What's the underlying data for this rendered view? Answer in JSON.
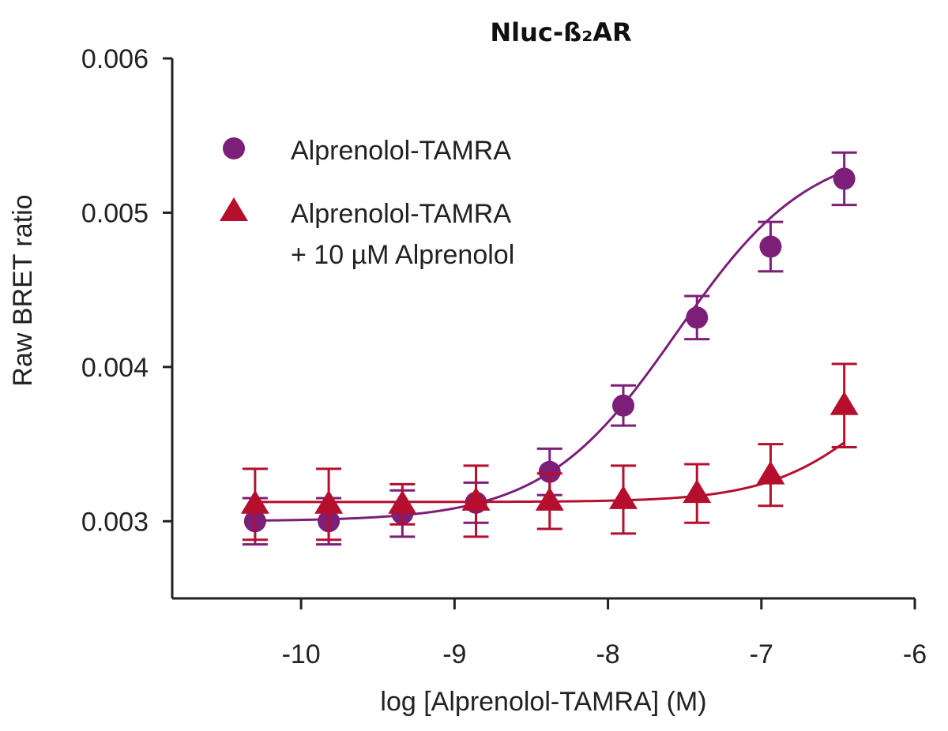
{
  "chart_data": {
    "type": "scatter",
    "title": "Nluc-ß₂AR",
    "xlabel": "log [Alprenolol-TAMRA] (M)",
    "ylabel": "Raw BRET ratio",
    "xlim": [
      -10.84,
      -6
    ],
    "ylim": [
      0.0025,
      0.006
    ],
    "x_ticks": [
      "-10",
      "-9",
      "-8",
      "-7",
      "-6"
    ],
    "y_ticks": [
      "0.003",
      "0.004",
      "0.005",
      "0.006"
    ],
    "grid": false,
    "legend_position": "top-left",
    "series": [
      {
        "name": "Alprenolol-TAMRA",
        "marker": "circle",
        "color": "#7b1f78",
        "x": [
          -10.3,
          -9.82,
          -9.34,
          -8.86,
          -8.38,
          -7.9,
          -7.42,
          -6.94,
          -6.46
        ],
        "y": [
          0.003,
          0.003,
          0.00305,
          0.00312,
          0.00332,
          0.00375,
          0.00432,
          0.00478,
          0.00522
        ],
        "err": [
          0.00015,
          0.00015,
          0.00015,
          0.00013,
          0.00015,
          0.00013,
          0.00014,
          0.00016,
          0.00017
        ],
        "fit": {
          "bottom": 0.003,
          "top": 0.00545,
          "logEC50": -7.55,
          "hill": 1.0
        }
      },
      {
        "name": "Alprenolol-TAMRA\n+ 10 µM Alprenolol",
        "legend_lines": [
          "Alprenolol-TAMRA",
          "+ 10 µM Alprenolol"
        ],
        "marker": "triangle",
        "color": "#b50f2d",
        "x": [
          -10.3,
          -9.82,
          -9.34,
          -8.86,
          -8.38,
          -7.9,
          -7.42,
          -6.94,
          -6.46
        ],
        "y": [
          0.00311,
          0.00311,
          0.00311,
          0.00313,
          0.00313,
          0.00314,
          0.00318,
          0.0033,
          0.00375
        ],
        "err": [
          0.00023,
          0.00023,
          0.00013,
          0.00023,
          0.00018,
          0.00022,
          0.00019,
          0.0002,
          0.00027
        ],
        "fit": {
          "bottom": 0.003125,
          "top": 0.0043,
          "logEC50": -6.2,
          "hill": 1.2
        }
      }
    ]
  }
}
